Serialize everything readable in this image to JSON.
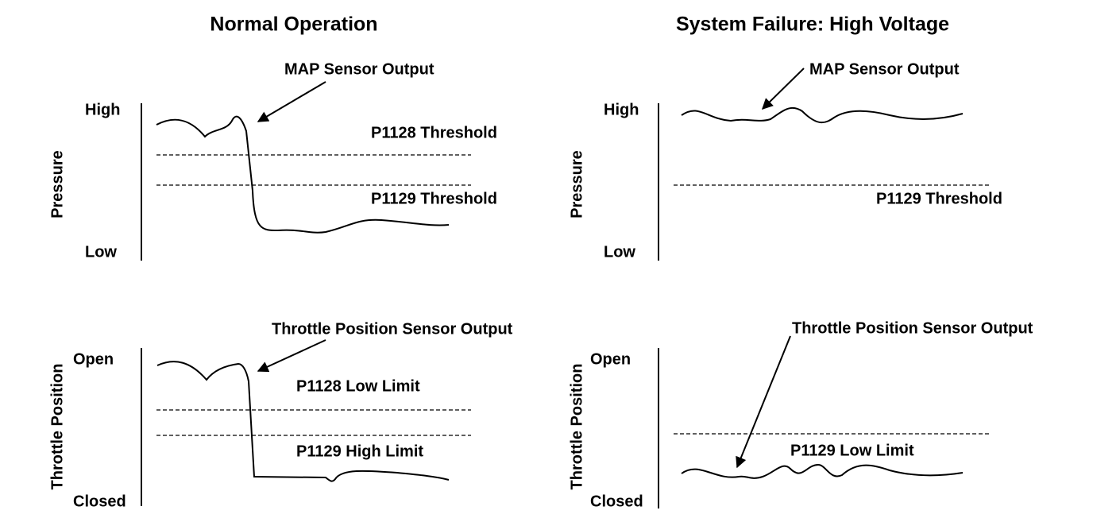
{
  "panels": [
    {
      "title": "Normal Operation",
      "plots": [
        {
          "y_label": "Pressure",
          "top_label": "High",
          "bottom_label": "Low",
          "signal": "MAP Sensor Output",
          "thresholds": [
            "P1128 Threshold",
            "P1129 Threshold"
          ]
        },
        {
          "y_label": "Throttle Position",
          "top_label": "Open",
          "bottom_label": "Closed",
          "signal": "Throttle Position Sensor Output",
          "thresholds": [
            "P1128 Low Limit",
            "P1129 High Limit"
          ]
        }
      ]
    },
    {
      "title": "System Failure: High Voltage",
      "plots": [
        {
          "y_label": "Pressure",
          "top_label": "High",
          "bottom_label": "Low",
          "signal": "MAP Sensor Output",
          "thresholds": [
            "P1129 Threshold"
          ]
        },
        {
          "y_label": "Throttle Position",
          "top_label": "Open",
          "bottom_label": "Closed",
          "signal": "Throttle Position Sensor Output",
          "thresholds": [
            "P1129 Low Limit"
          ]
        }
      ]
    }
  ]
}
